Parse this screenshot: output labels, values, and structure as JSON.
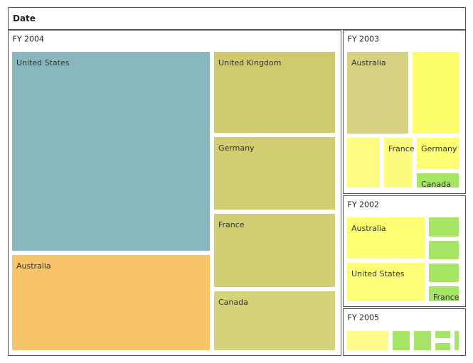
{
  "chart_data": {
    "type": "treemap",
    "title": "Date",
    "groups": [
      {
        "name": "FY 2004",
        "leaves": [
          {
            "label": "United States",
            "color": "#88b7bd"
          },
          {
            "label": "Australia",
            "color": "#f7c46a"
          },
          {
            "label": "United Kingdom",
            "color": "#cfca6e"
          },
          {
            "label": "Germany",
            "color": "#d1cd70"
          },
          {
            "label": "France",
            "color": "#d1cf72"
          },
          {
            "label": "Canada",
            "color": "#d4d27b"
          }
        ]
      },
      {
        "name": "FY 2003",
        "leaves": [
          {
            "label": "Australia",
            "color": "#d6d281"
          },
          {
            "label": "",
            "color": "#fdfe6b"
          },
          {
            "label": "",
            "color": "#fdfb82"
          },
          {
            "label": "France",
            "color": "#fdfa80"
          },
          {
            "label": "Germany",
            "color": "#fefe73"
          },
          {
            "label": "Canada",
            "color": "#a7e365"
          }
        ]
      },
      {
        "name": "FY 2002",
        "leaves": [
          {
            "label": "Australia",
            "color": "#fefe73"
          },
          {
            "label": "United States",
            "color": "#fefe78"
          },
          {
            "label": "",
            "color": "#a6e565"
          },
          {
            "label": "",
            "color": "#a6e565"
          },
          {
            "label": "",
            "color": "#a6e565"
          },
          {
            "label": "France",
            "color": "#a6e565"
          }
        ]
      },
      {
        "name": "FY 2005",
        "leaves": [
          {
            "label": "",
            "color": "#fdfb8a"
          },
          {
            "label": "",
            "color": "#a6e565"
          },
          {
            "label": "",
            "color": "#a6e565"
          },
          {
            "label": "",
            "color": "#a6e565"
          },
          {
            "label": "",
            "color": "#a6e565"
          },
          {
            "label": "",
            "color": "#a6e565"
          }
        ]
      }
    ]
  }
}
